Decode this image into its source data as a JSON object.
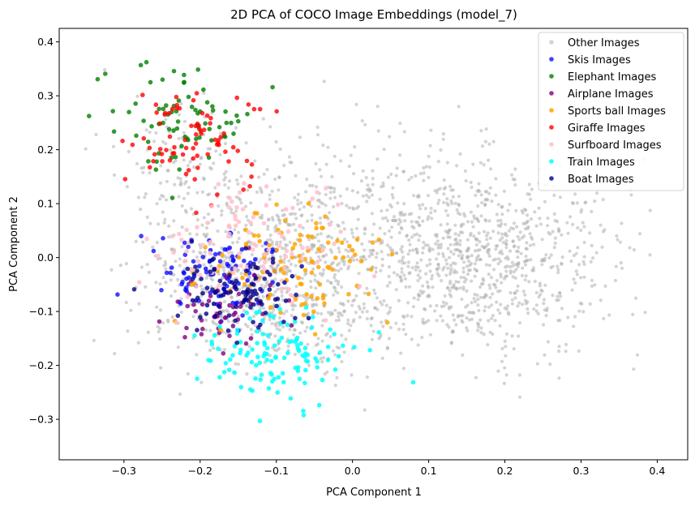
{
  "chart_data": {
    "type": "scatter",
    "title": "2D PCA of COCO Image Embeddings (model_7)",
    "xlabel": "PCA Component 1",
    "ylabel": "PCA Component 2",
    "xlim": [
      -0.385,
      0.44
    ],
    "ylim": [
      -0.375,
      0.425
    ],
    "xticks": [
      -0.3,
      -0.2,
      -0.1,
      0.0,
      0.1,
      0.2,
      0.3,
      0.4
    ],
    "xtick_labels": [
      "−0.3",
      "−0.2",
      "−0.1",
      "0.0",
      "0.1",
      "0.2",
      "0.3",
      "0.4"
    ],
    "yticks": [
      -0.3,
      -0.2,
      -0.1,
      0.0,
      0.1,
      0.2,
      0.3,
      0.4
    ],
    "ytick_labels": [
      "−0.3",
      "−0.2",
      "−0.1",
      "0.0",
      "0.1",
      "0.2",
      "0.3",
      "0.4"
    ],
    "grid": false,
    "legend_position": "top-right",
    "series": [
      {
        "name": "Other Images",
        "color": "#a9a9a9",
        "opacity": 0.5,
        "size": "small",
        "clusters": [
          {
            "cx": 0.16,
            "cy": 0.0,
            "sx": 0.09,
            "sy": 0.09,
            "n": 900
          },
          {
            "cx": -0.12,
            "cy": -0.05,
            "sx": 0.08,
            "sy": 0.08,
            "n": 650
          },
          {
            "cx": -0.02,
            "cy": 0.05,
            "sx": 0.08,
            "sy": 0.1,
            "n": 300
          },
          {
            "cx": -0.22,
            "cy": 0.15,
            "sx": 0.05,
            "sy": 0.08,
            "n": 120
          }
        ]
      },
      {
        "name": "Skis Images",
        "color": "#0000ff",
        "opacity": 0.75,
        "size": "large",
        "clusters": [
          {
            "cx": -0.17,
            "cy": -0.03,
            "sx": 0.04,
            "sy": 0.04,
            "n": 90
          }
        ]
      },
      {
        "name": "Elephant Images",
        "color": "#008000",
        "opacity": 0.8,
        "size": "large",
        "clusters": [
          {
            "cx": -0.22,
            "cy": 0.25,
            "sx": 0.055,
            "sy": 0.045,
            "n": 75
          }
        ]
      },
      {
        "name": "Airplane Images",
        "color": "#800080",
        "opacity": 0.8,
        "size": "large",
        "clusters": [
          {
            "cx": -0.16,
            "cy": -0.1,
            "sx": 0.035,
            "sy": 0.035,
            "n": 55
          }
        ]
      },
      {
        "name": "Sports ball Images",
        "color": "#ffa500",
        "opacity": 0.85,
        "size": "large",
        "clusters": [
          {
            "cx": -0.07,
            "cy": -0.02,
            "sx": 0.06,
            "sy": 0.05,
            "n": 110
          }
        ]
      },
      {
        "name": "Giraffe Images",
        "color": "#ff0000",
        "opacity": 0.8,
        "size": "large",
        "clusters": [
          {
            "cx": -0.21,
            "cy": 0.22,
            "sx": 0.04,
            "sy": 0.045,
            "n": 80
          }
        ]
      },
      {
        "name": "Surfboard Images",
        "color": "#ffc0cb",
        "opacity": 0.85,
        "size": "large",
        "clusters": [
          {
            "cx": -0.14,
            "cy": 0.02,
            "sx": 0.07,
            "sy": 0.06,
            "n": 100
          }
        ]
      },
      {
        "name": "Train Images",
        "color": "#00ffff",
        "opacity": 0.85,
        "size": "large",
        "clusters": [
          {
            "cx": -0.09,
            "cy": -0.18,
            "sx": 0.05,
            "sy": 0.04,
            "n": 120
          }
        ]
      },
      {
        "name": "Boat Images",
        "color": "#00008b",
        "opacity": 0.8,
        "size": "large",
        "clusters": [
          {
            "cx": -0.15,
            "cy": -0.06,
            "sx": 0.04,
            "sy": 0.035,
            "n": 100
          }
        ]
      }
    ]
  }
}
